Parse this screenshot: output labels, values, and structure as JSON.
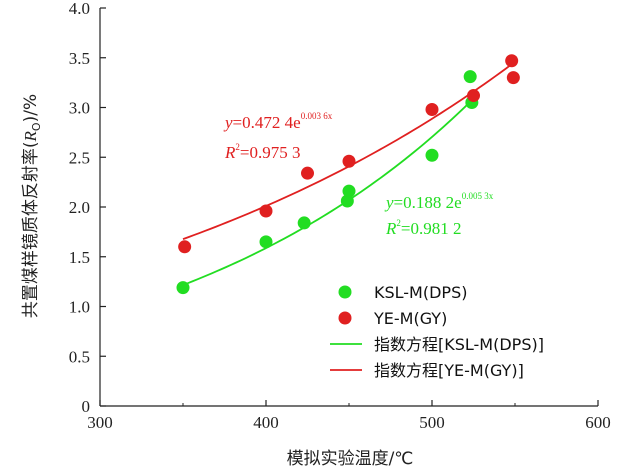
{
  "chart_data": {
    "type": "scatter",
    "xlabel": "模拟实验温度/℃",
    "ylabel_parts": [
      "共置煤样镜质体反射率(",
      "R",
      "O",
      ")/%"
    ],
    "xlim": [
      300,
      600
    ],
    "ylim": [
      0.0,
      4.0
    ],
    "x_ticks": [
      300,
      400,
      500,
      600
    ],
    "y_ticks": [
      0.0,
      0.5,
      1.0,
      1.5,
      2.0,
      2.5,
      3.0,
      3.5,
      4.0
    ],
    "x_tick_labels": [
      "300",
      "400",
      "500",
      "600"
    ],
    "y_tick_labels": [
      "0",
      "0.5",
      "1.0",
      "1.5",
      "2.0",
      "2.5",
      "3.0",
      "3.5",
      "4.0"
    ],
    "colors": {
      "KSL": "#22dd22",
      "YE": "#e02020"
    },
    "series": [
      {
        "name": "KSL-M(DPS)",
        "color": "#22dd22",
        "x": [
          350,
          400,
          423,
          449,
          450,
          500,
          523,
          524
        ],
        "y": [
          1.19,
          1.65,
          1.84,
          2.06,
          2.16,
          2.52,
          3.31,
          3.05
        ]
      },
      {
        "name": "YE-M(GY)",
        "color": "#e02020",
        "x": [
          351,
          400,
          425,
          450,
          500,
          525,
          548,
          549
        ],
        "y": [
          1.6,
          1.96,
          2.34,
          2.46,
          2.98,
          3.12,
          3.47,
          3.3
        ]
      }
    ],
    "fits": [
      {
        "name": "指数方程[KSL-M(DPS)]",
        "color": "#22dd22",
        "a": 0.1882,
        "b": 0.00533,
        "x_range": [
          350,
          524
        ],
        "eq_parts": [
          "y",
          "=0.188 2e",
          "0.005 3x"
        ],
        "r2_parts": [
          "R",
          "2",
          "=0.981 2"
        ]
      },
      {
        "name": "指数方程[YE-M(GY)]",
        "color": "#e02020",
        "a": 0.4724,
        "b": 0.00362,
        "x_range": [
          350,
          548
        ],
        "eq_parts": [
          "y",
          "=0.472 4e",
          "0.003 6x"
        ],
        "r2_parts": [
          "R",
          "2",
          "=0.975 3"
        ]
      }
    ],
    "legend": [
      {
        "label": "KSL-M(DPS)",
        "kind": "marker",
        "color": "#22dd22"
      },
      {
        "label": "YE-M(GY)",
        "kind": "marker",
        "color": "#e02020"
      },
      {
        "label": "指数方程[KSL-M(DPS)]",
        "kind": "line",
        "color": "#22dd22"
      },
      {
        "label": "指数方程[YE-M(GY)]",
        "kind": "line",
        "color": "#e02020"
      }
    ],
    "legend_position": "bottom-right",
    "grid": false
  }
}
